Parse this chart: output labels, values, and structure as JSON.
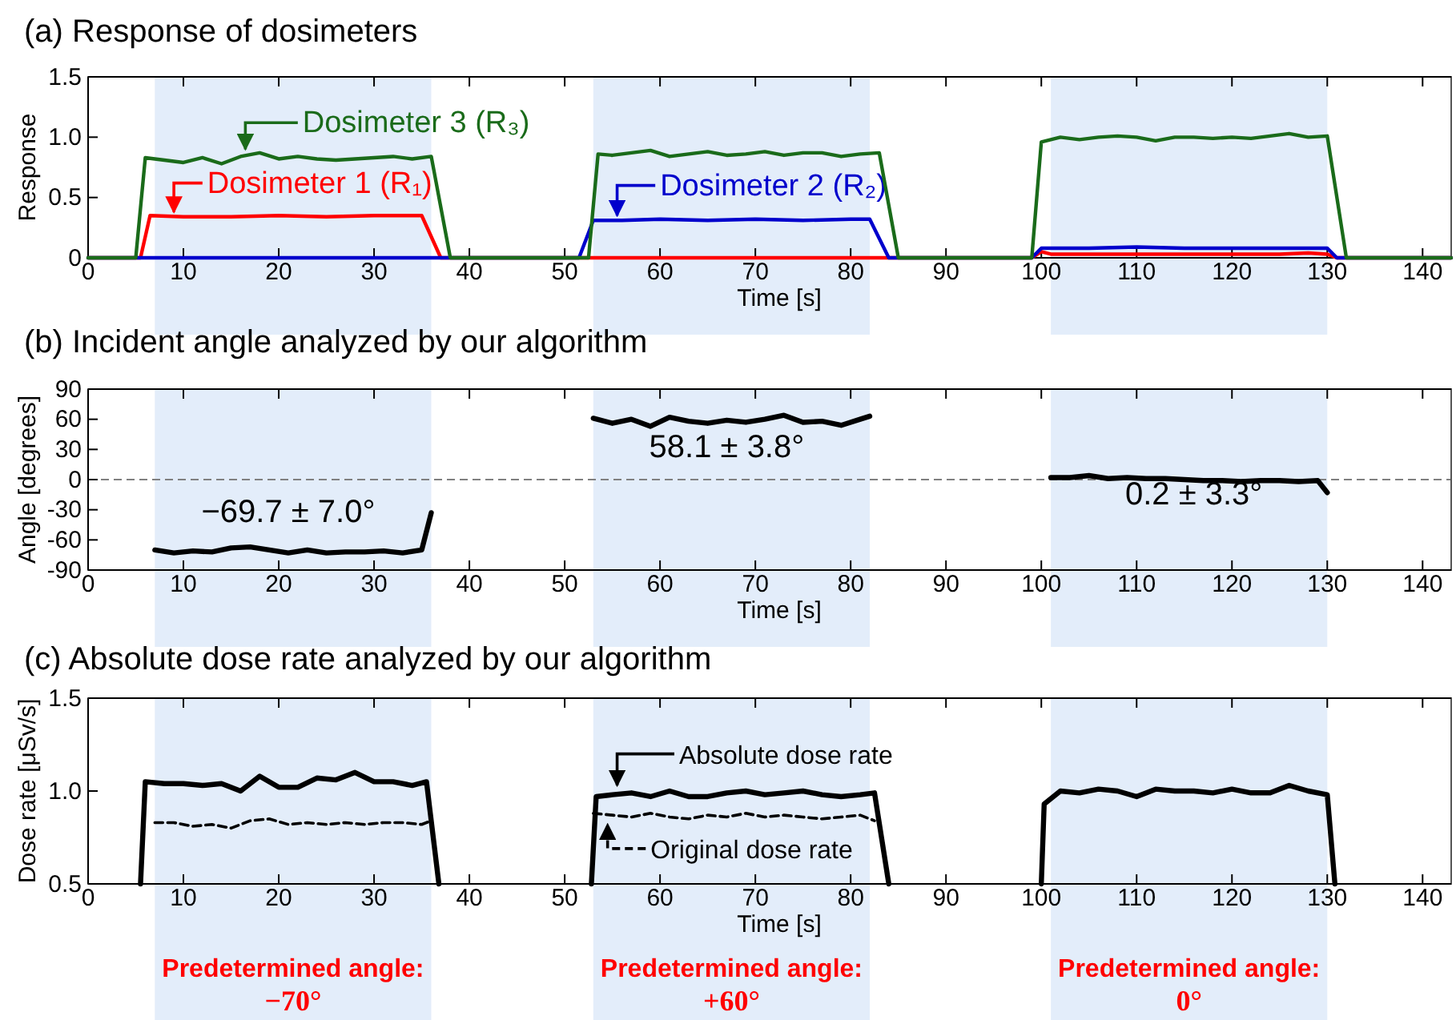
{
  "chart_data": [
    {
      "type": "line",
      "title": "(a) Response of dosimeters",
      "xlabel": "Time [s]",
      "ylabel": "Response",
      "xlim": [
        0,
        143
      ],
      "xticks": [
        0,
        10,
        20,
        30,
        40,
        50,
        60,
        70,
        80,
        90,
        100,
        110,
        120,
        130,
        140
      ],
      "ylim": [
        0,
        1.5
      ],
      "yticks": [
        0,
        0.5,
        {
          "value": 1,
          "label": "1.0"
        },
        1.5
      ],
      "grid": false,
      "legend": "top left",
      "bands": [
        {
          "axis": "x",
          "from": 7,
          "to": 36,
          "color": "#e3edfa"
        },
        {
          "axis": "x",
          "from": 53,
          "to": 82,
          "color": "#e3edfa"
        },
        {
          "axis": "x",
          "from": 101,
          "to": 130,
          "color": "#e3edfa"
        }
      ],
      "series": [
        {
          "name": "Dosimeter 1 (R₁)",
          "color": "#ff0000",
          "x": [
            0,
            5.5,
            6.5,
            10,
            15,
            20,
            25,
            30,
            35,
            37,
            99,
            100,
            101,
            105,
            110,
            115,
            120,
            125,
            128,
            130,
            131,
            143
          ],
          "values": [
            0,
            0,
            0.35,
            0.34,
            0.34,
            0.35,
            0.34,
            0.35,
            0.35,
            0,
            0,
            0.05,
            0.03,
            0.03,
            0.03,
            0.03,
            0.03,
            0.03,
            0.04,
            0.03,
            0,
            0
          ]
        },
        {
          "name": "Dosimeter 2 (R₂)",
          "color": "#0000cc",
          "x": [
            0,
            51.5,
            53,
            56,
            60,
            65,
            70,
            75,
            80,
            82,
            84,
            99,
            100,
            105,
            110,
            115,
            120,
            125,
            130,
            131,
            143
          ],
          "values": [
            0,
            0,
            0.31,
            0.31,
            0.32,
            0.31,
            0.32,
            0.31,
            0.32,
            0.32,
            0,
            0,
            0.08,
            0.08,
            0.09,
            0.08,
            0.08,
            0.08,
            0.08,
            0,
            0
          ]
        },
        {
          "name": "Dosimeter 3 (R₃)",
          "color": "#1a6b1a",
          "x": [
            0,
            5,
            6,
            8,
            10,
            12,
            14,
            16,
            18,
            20,
            22,
            24,
            26,
            28,
            30,
            32,
            34,
            36,
            38,
            52.5,
            53.5,
            55,
            57,
            59,
            61,
            63,
            65,
            67,
            69,
            71,
            73,
            75,
            77,
            79,
            81,
            83,
            85,
            99,
            100,
            102,
            104,
            106,
            108,
            110,
            112,
            114,
            116,
            118,
            120,
            122,
            124,
            126,
            128,
            130,
            132,
            143
          ],
          "values": [
            0,
            0,
            0.83,
            0.81,
            0.79,
            0.83,
            0.78,
            0.84,
            0.87,
            0.82,
            0.84,
            0.82,
            0.81,
            0.82,
            0.83,
            0.84,
            0.82,
            0.84,
            0,
            0,
            0.86,
            0.85,
            0.87,
            0.89,
            0.84,
            0.86,
            0.88,
            0.85,
            0.86,
            0.88,
            0.85,
            0.87,
            0.87,
            0.84,
            0.86,
            0.87,
            0,
            0,
            0.96,
            1.0,
            0.98,
            1.0,
            1.01,
            1.0,
            0.97,
            1.0,
            1.0,
            0.99,
            1.0,
            0.99,
            1.01,
            1.03,
            1.0,
            1.01,
            0,
            0
          ]
        }
      ]
    },
    {
      "type": "line",
      "title": "(b) Incident angle analyzed by our algorithm",
      "xlabel": "Time [s]",
      "ylabel": "Angle [degrees]",
      "xlim": [
        0,
        143
      ],
      "xticks": [
        0,
        10,
        20,
        30,
        40,
        50,
        60,
        70,
        80,
        90,
        100,
        110,
        120,
        130,
        140
      ],
      "ylim": [
        -90,
        90
      ],
      "yticks": [
        -90,
        -60,
        -30,
        0,
        30,
        60,
        90
      ],
      "grid": false,
      "ref_lines": [
        {
          "axis": "y",
          "value": 0,
          "color": "#808080",
          "line_style": "dashed"
        }
      ],
      "bands": [
        {
          "axis": "x",
          "from": 7,
          "to": 36,
          "color": "#e3edfa"
        },
        {
          "axis": "x",
          "from": 53,
          "to": 82,
          "color": "#e3edfa"
        },
        {
          "axis": "x",
          "from": 101,
          "to": 130,
          "color": "#e3edfa"
        }
      ],
      "annotations": [
        "−69.7 ± 7.0°",
        "58.1 ± 3.8°",
        "0.2 ± 3.3°"
      ],
      "series": [
        {
          "color": "#000000",
          "x": [
            7,
            9,
            11,
            13,
            15,
            17,
            19,
            21,
            23,
            25,
            27,
            29,
            31,
            33,
            35,
            36,
            44,
            53,
            55,
            57,
            59,
            61,
            63,
            65,
            67,
            69,
            71,
            73,
            75,
            77,
            79,
            81,
            82,
            91,
            101,
            103,
            105,
            107,
            109,
            111,
            113,
            115,
            117,
            119,
            121,
            123,
            125,
            127,
            129,
            130
          ],
          "values": [
            -70,
            -73,
            -71,
            -72,
            -68,
            -67,
            -70,
            -73,
            -70,
            -73,
            -72,
            -72,
            -71,
            -73,
            -70,
            -33,
            null,
            61,
            56,
            60,
            53,
            62,
            58,
            56,
            59,
            57,
            60,
            64,
            57,
            58,
            54,
            60,
            63,
            null,
            2,
            2,
            4,
            1,
            2,
            1,
            1,
            0,
            -1,
            -1,
            -2,
            -1,
            -1,
            -2,
            -1,
            -13
          ]
        }
      ]
    },
    {
      "type": "line",
      "title": "(c) Absolute dose rate analyzed by our algorithm",
      "xlabel": "Time [s]",
      "ylabel": "Dose rate [μSv/s]",
      "xlim": [
        0,
        143
      ],
      "xticks": [
        0,
        10,
        20,
        30,
        40,
        50,
        60,
        70,
        80,
        90,
        100,
        110,
        120,
        130,
        140
      ],
      "ylim": [
        0.5,
        1.5
      ],
      "yticks": [
        0.5,
        {
          "value": 1,
          "label": "1.0"
        },
        1.5
      ],
      "grid": false,
      "legend": "bottom left",
      "bands": [
        {
          "axis": "x",
          "from": 7,
          "to": 36,
          "color": "#e3edfa",
          "label": "Predetermined angle: −70°"
        },
        {
          "axis": "x",
          "from": 53,
          "to": 82,
          "color": "#e3edfa",
          "label": "Predetermined angle: +60°"
        },
        {
          "axis": "x",
          "from": 101,
          "to": 130,
          "color": "#e3edfa",
          "label": "Predetermined angle: 0°"
        }
      ],
      "series": [
        {
          "name": "Absolute dose rate",
          "color": "#000000",
          "line_style": "solid",
          "x": [
            5.5,
            6,
            8,
            10,
            12,
            14,
            16,
            18,
            20,
            22,
            24,
            26,
            28,
            30,
            32,
            34,
            35.5,
            36.8,
            45,
            52.8,
            53.3,
            55,
            57,
            59,
            61,
            63,
            65,
            67,
            69,
            71,
            73,
            75,
            77,
            79,
            81,
            82.5,
            84,
            91,
            100,
            100.3,
            102,
            104,
            106,
            108,
            110,
            112,
            114,
            116,
            118,
            120,
            122,
            124,
            126,
            128,
            130,
            130.8
          ],
          "values": [
            0.5,
            1.05,
            1.04,
            1.04,
            1.03,
            1.04,
            1.0,
            1.08,
            1.02,
            1.02,
            1.07,
            1.06,
            1.1,
            1.05,
            1.05,
            1.03,
            1.05,
            0.5,
            null,
            0.5,
            0.97,
            0.98,
            0.99,
            0.97,
            1.0,
            0.97,
            0.97,
            0.99,
            1.0,
            0.98,
            0.99,
            1.0,
            0.98,
            0.97,
            0.98,
            0.99,
            0.5,
            null,
            0.5,
            0.93,
            1.0,
            0.99,
            1.01,
            1.0,
            0.97,
            1.01,
            1.0,
            1.0,
            0.99,
            1.01,
            0.99,
            0.99,
            1.03,
            1.0,
            0.98,
            0.5
          ]
        },
        {
          "name": "Original dose rate",
          "color": "#000000",
          "line_style": "dashed",
          "x": [
            7,
            9,
            11,
            13,
            15,
            17,
            19,
            21,
            23,
            25,
            27,
            29,
            31,
            33,
            35,
            36,
            44,
            53,
            55,
            57,
            59,
            61,
            63,
            65,
            67,
            69,
            71,
            73,
            75,
            77,
            79,
            81,
            82.5
          ],
          "values": [
            0.83,
            0.83,
            0.81,
            0.82,
            0.8,
            0.84,
            0.85,
            0.82,
            0.83,
            0.82,
            0.83,
            0.82,
            0.83,
            0.83,
            0.82,
            0.84,
            null,
            0.88,
            0.87,
            0.86,
            0.88,
            0.86,
            0.85,
            0.87,
            0.86,
            0.88,
            0.86,
            0.87,
            0.86,
            0.85,
            0.86,
            0.87,
            0.84
          ]
        }
      ]
    }
  ]
}
